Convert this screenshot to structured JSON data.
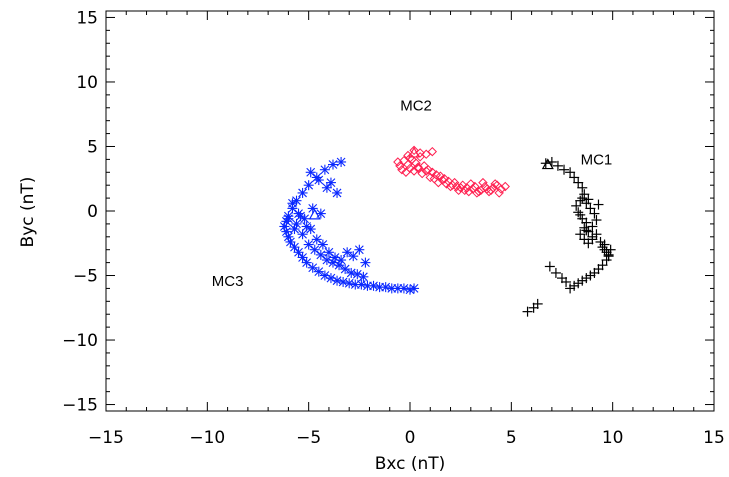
{
  "chart_data": {
    "type": "scatter",
    "xlabel": "Bxc  (nT)",
    "ylabel": "Byc  (nT)",
    "xlim": [
      -15,
      15
    ],
    "ylim": [
      -15.5,
      15.5
    ],
    "x_ticks": [
      "−15",
      "−10",
      "−5",
      "0",
      "5",
      "10",
      "15"
    ],
    "y_ticks": [
      "−15",
      "−10",
      "−5",
      "0",
      "5",
      "10",
      "15"
    ],
    "grid": false,
    "series": [
      {
        "name": "MC1",
        "marker": "plus",
        "color": "#000000",
        "label_at": [
          9.2,
          3.6
        ],
        "x": [
          6.7,
          7.0,
          7.3,
          7.6,
          7.9,
          8.1,
          8.3,
          8.5,
          8.6,
          8.4,
          8.2,
          8.3,
          8.5,
          8.7,
          8.6,
          8.8,
          9.0,
          9.2,
          9.1,
          8.9,
          8.7,
          8.5,
          8.4,
          8.6,
          8.8,
          9.0,
          9.2,
          9.4,
          9.5,
          9.6,
          9.7,
          9.8,
          9.9,
          9.7,
          9.5,
          9.3,
          9.1,
          8.9,
          8.7,
          8.5,
          8.3,
          8.1,
          7.9,
          7.7,
          7.5,
          7.2,
          6.9,
          6.3,
          6.1,
          5.8,
          8.8,
          9.3,
          9.0,
          8.7,
          8.4,
          9.6,
          9.8
        ],
        "y": [
          3.7,
          3.8,
          3.5,
          3.2,
          3.0,
          2.6,
          2.2,
          1.8,
          1.3,
          0.8,
          0.4,
          -0.1,
          -0.6,
          -0.9,
          -1.3,
          -1.6,
          -1.2,
          -0.7,
          -0.2,
          0.2,
          0.6,
          1.0,
          -1.8,
          -2.2,
          -2.5,
          -2.2,
          -1.8,
          -2.4,
          -2.8,
          -3.0,
          -3.2,
          -3.5,
          -3.0,
          -3.8,
          -4.2,
          -4.5,
          -4.8,
          -5.0,
          -5.2,
          -5.4,
          -5.6,
          -5.8,
          -6.0,
          -5.5,
          -5.2,
          -4.8,
          -4.3,
          -7.2,
          -7.5,
          -7.8,
          0.9,
          0.5,
          -2.0,
          -1.5,
          -0.3,
          -2.6,
          -3.4
        ]
      },
      {
        "name": "MC2",
        "marker": "diamond",
        "color": "#ff2050",
        "label_at": [
          0.3,
          7.8
        ],
        "x": [
          -0.6,
          -0.5,
          -0.3,
          -0.1,
          0.1,
          0.3,
          0.5,
          0.7,
          0.9,
          1.1,
          1.3,
          1.5,
          1.7,
          1.9,
          2.1,
          2.3,
          2.5,
          2.7,
          2.9,
          3.1,
          3.3,
          3.5,
          3.7,
          3.9,
          4.1,
          4.3,
          4.5,
          4.7,
          -0.4,
          -0.2,
          0.0,
          0.2,
          0.4,
          0.6,
          0.8,
          1.0,
          1.2,
          1.4,
          1.6,
          1.8,
          2.0,
          2.2,
          2.4,
          2.6,
          2.8,
          3.0,
          3.2,
          3.4,
          3.6,
          3.8,
          4.0,
          4.2,
          4.4,
          0.5,
          0.2,
          -0.1,
          0.8,
          1.1,
          0.0,
          0.4
        ],
        "y": [
          3.8,
          3.5,
          3.9,
          3.6,
          4.0,
          3.7,
          4.2,
          3.5,
          3.2,
          3.0,
          2.8,
          2.7,
          2.5,
          2.3,
          2.0,
          1.9,
          1.8,
          1.6,
          1.5,
          1.7,
          1.4,
          1.6,
          1.9,
          1.5,
          1.8,
          2.0,
          1.7,
          1.9,
          3.2,
          3.0,
          3.3,
          3.1,
          3.4,
          2.9,
          3.1,
          2.6,
          2.5,
          2.2,
          2.4,
          2.1,
          1.9,
          2.2,
          1.6,
          2.0,
          1.8,
          2.1,
          1.9,
          1.5,
          2.2,
          1.7,
          1.6,
          2.1,
          1.4,
          4.5,
          4.7,
          4.3,
          4.4,
          4.6,
          4.1,
          3.3
        ]
      },
      {
        "name": "MC3",
        "marker": "asterisk",
        "color": "#0a28ff",
        "label_at": [
          -9.0,
          -5.8
        ],
        "x": [
          -3.4,
          -3.8,
          -4.2,
          -4.6,
          -5.0,
          -5.3,
          -5.6,
          -5.8,
          -6.0,
          -6.1,
          -6.2,
          -6.1,
          -6.0,
          -5.9,
          -5.7,
          -5.5,
          -5.3,
          -5.1,
          -4.8,
          -4.5,
          -4.2,
          -3.9,
          -3.6,
          -3.3,
          -3.0,
          -2.7,
          -2.4,
          -2.1,
          -1.8,
          -1.5,
          -1.2,
          -0.9,
          -0.6,
          -0.3,
          0.0,
          0.2,
          -5.6,
          -5.3,
          -5.0,
          -4.7,
          -4.4,
          -4.1,
          -3.8,
          -3.5,
          -3.2,
          -2.9,
          -2.6,
          -2.3,
          -5.8,
          -5.5,
          -5.2,
          -4.9,
          -4.6,
          -4.3,
          -4.0,
          -3.7,
          -3.4,
          -3.1,
          -2.8,
          -2.5,
          -2.2,
          -4.9,
          -4.5,
          -4.1,
          -3.9,
          -3.6,
          -4.8,
          -4.4,
          -5.4,
          -5.1,
          -6.0,
          -5.7
        ],
        "y": [
          3.8,
          3.6,
          3.2,
          2.6,
          2.0,
          1.4,
          0.8,
          0.2,
          -0.4,
          -0.8,
          -1.2,
          -1.6,
          -2.0,
          -2.4,
          -2.8,
          -3.2,
          -3.6,
          -4.0,
          -4.4,
          -4.7,
          -5.0,
          -5.2,
          -5.4,
          -5.5,
          -5.6,
          -5.7,
          -5.7,
          -5.8,
          -5.8,
          -5.9,
          -5.9,
          -6.0,
          -6.0,
          -6.0,
          -6.1,
          -6.0,
          -1.0,
          -1.8,
          -2.6,
          -3.0,
          -3.4,
          -3.8,
          -4.0,
          -4.2,
          -4.5,
          -4.8,
          -4.9,
          -5.1,
          0.6,
          -0.2,
          -0.6,
          -1.4,
          -2.2,
          -2.6,
          -3.2,
          -3.6,
          -3.8,
          -3.2,
          -3.5,
          -3.0,
          -4.0,
          3.0,
          2.4,
          1.8,
          2.2,
          1.4,
          0.2,
          -0.2,
          -0.4,
          -1.2,
          -0.6,
          -1.4
        ]
      }
    ],
    "triangles": [
      {
        "x": 6.8,
        "y": 3.6,
        "color": "#000000"
      },
      {
        "x": 0.2,
        "y": 4.5,
        "color": "#ff2050"
      },
      {
        "x": -4.7,
        "y": -0.3,
        "color": "#0a28ff"
      }
    ]
  }
}
